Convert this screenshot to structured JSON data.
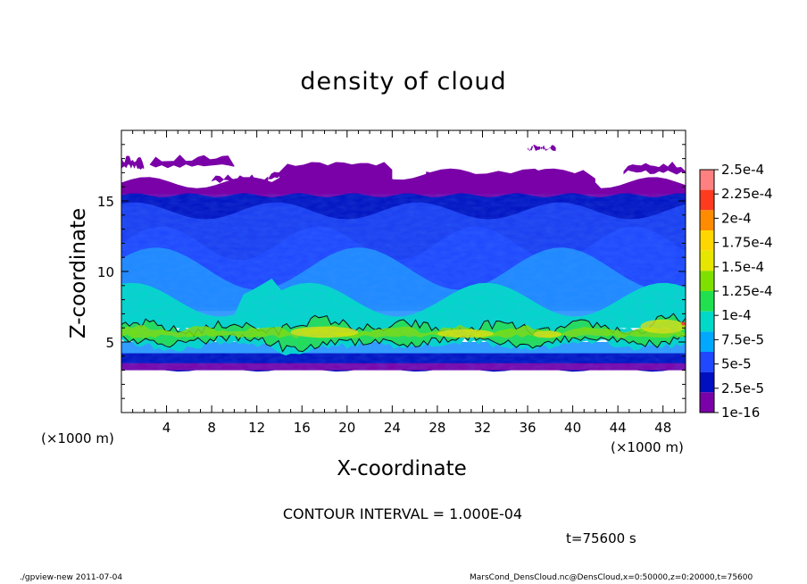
{
  "chart_data": {
    "type": "heatmap",
    "title": "density of cloud",
    "xlabel": "X-coordinate",
    "ylabel": "Z-coordinate",
    "x_unit_label": "(×1000 m)",
    "x_ticks": [
      4,
      8,
      12,
      16,
      20,
      24,
      28,
      32,
      36,
      40,
      44,
      48
    ],
    "y_ticks": [
      5,
      10,
      15
    ],
    "xlim": [
      0,
      50
    ],
    "ylim": [
      0,
      20
    ],
    "colorbar_labels": [
      "2.5e-4",
      "2.25e-4",
      "2e-4",
      "1.75e-4",
      "1.5e-4",
      "1.25e-4",
      "1e-4",
      "7.5e-5",
      "5e-5",
      "2.5e-5",
      "1e-16"
    ],
    "colorbar_colors": [
      "#ff8080",
      "#ff3b1f",
      "#ff8c00",
      "#ffd700",
      "#e6e600",
      "#7fe000",
      "#20e050",
      "#00d8c8",
      "#00a8ff",
      "#2048ff",
      "#0010c0",
      "#7a00a8"
    ],
    "layers": [
      {
        "name": "top-puffs",
        "z_range": [
          16.5,
          18.8
        ]
      },
      {
        "name": "purple-upper",
        "z_range": [
          15,
          16.5
        ]
      },
      {
        "name": "dark-blue",
        "z_range": [
          12,
          15.5
        ]
      },
      {
        "name": "blue-mid",
        "z_range": [
          7,
          12
        ]
      },
      {
        "name": "cyan",
        "z_range": [
          6.5,
          8.5
        ]
      },
      {
        "name": "green-band",
        "z_range": [
          4.5,
          6.8
        ]
      },
      {
        "name": "lower-blue-purple",
        "z_range": [
          3,
          4.5
        ]
      }
    ],
    "contour_interval": "CONTOUR INTERVAL = 1.000E-04",
    "time": "t=75600 s"
  },
  "footer": {
    "left": "./gpview-new   2011-07-04",
    "right": "MarsCond_DensCloud.nc@DensCloud,x=0:50000,z=0:20000,t=75600"
  }
}
